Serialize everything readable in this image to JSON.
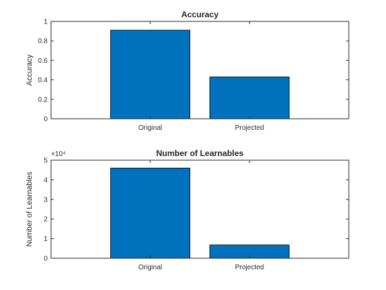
{
  "chart_data": [
    {
      "type": "bar",
      "title": "Accuracy",
      "xlabel": "",
      "ylabel": "Accuracy",
      "categories": [
        "Original",
        "Projected"
      ],
      "values": [
        0.91,
        0.43
      ],
      "ylim": [
        0,
        1
      ],
      "yticks": [
        "0",
        "0.2",
        "0.4",
        "0.6",
        "0.8",
        "1"
      ],
      "ytick_values": [
        0,
        0.2,
        0.4,
        0.6,
        0.8,
        1
      ],
      "bar_color": "#0072BD",
      "grid": false
    },
    {
      "type": "bar",
      "title": "Number of Learnables",
      "xlabel": "",
      "ylabel": "Number of Learnables",
      "categories": [
        "Original",
        "Projected"
      ],
      "values": [
        46000,
        6800
      ],
      "ylim": [
        0,
        50000
      ],
      "yticks": [
        "0",
        "1",
        "2",
        "3",
        "4",
        "5"
      ],
      "ytick_values": [
        0,
        10000,
        20000,
        30000,
        40000,
        50000
      ],
      "exponent_label": "×10⁴",
      "bar_color": "#0072BD",
      "grid": false
    }
  ]
}
